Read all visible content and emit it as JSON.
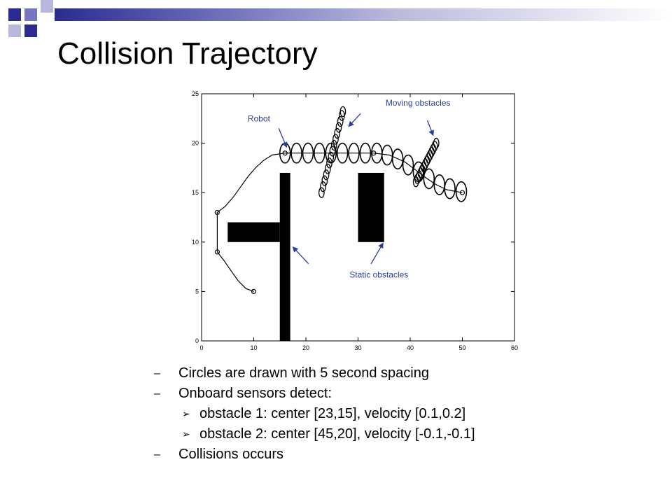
{
  "slide": {
    "title": "Collision Trajectory"
  },
  "theme": {
    "dark_blue": "#2b2b8f",
    "mid_blue": "#7777bf",
    "light_blue": "#b8b8dc",
    "annotation_color": "#2b3f9a"
  },
  "chart_data": {
    "type": "scatter",
    "xlim": [
      0,
      60
    ],
    "ylim": [
      0,
      25
    ],
    "x_ticks": [
      0,
      10,
      20,
      30,
      40,
      50,
      60
    ],
    "y_ticks": [
      0,
      5,
      10,
      15,
      20,
      25
    ],
    "grid": false,
    "static_obstacles": [
      {
        "x0": 15,
        "x1": 17,
        "y0": 0,
        "y1": 17
      },
      {
        "x0": 5,
        "x1": 15,
        "y0": 10,
        "y1": 12
      },
      {
        "x0": 30,
        "x1": 35,
        "y0": 10,
        "y1": 17
      }
    ],
    "robot_waypoints": [
      [
        10,
        5
      ],
      [
        3,
        9
      ],
      [
        3,
        13
      ],
      [
        16,
        19
      ],
      [
        33,
        19
      ],
      [
        50,
        15
      ]
    ],
    "robot_path": [
      [
        10,
        5
      ],
      [
        8.5,
        5.3
      ],
      [
        7,
        6.1
      ],
      [
        5.5,
        7.2
      ],
      [
        4.2,
        8.2
      ],
      [
        3,
        9
      ],
      [
        3,
        10
      ],
      [
        3,
        11
      ],
      [
        3,
        12
      ],
      [
        3,
        13
      ],
      [
        4.5,
        13.6
      ],
      [
        6,
        14.5
      ],
      [
        7.5,
        15.6
      ],
      [
        9,
        16.7
      ],
      [
        10.5,
        17.6
      ],
      [
        12,
        18.3
      ],
      [
        13.5,
        18.8
      ],
      [
        16,
        19
      ],
      [
        20,
        19
      ],
      [
        24,
        19
      ],
      [
        28,
        19
      ],
      [
        33,
        19
      ],
      [
        36,
        18.8
      ],
      [
        39,
        18.1
      ],
      [
        41,
        17.3
      ],
      [
        43,
        16.5
      ],
      [
        45,
        15.8
      ],
      [
        47,
        15.3
      ],
      [
        50,
        15
      ]
    ],
    "robot_circles": [
      [
        16,
        19
      ],
      [
        18.2,
        19
      ],
      [
        20.4,
        19
      ],
      [
        22.6,
        19
      ],
      [
        24.8,
        19
      ],
      [
        27,
        19
      ],
      [
        29.2,
        19
      ],
      [
        31.4,
        19
      ],
      [
        33.6,
        19
      ],
      [
        35.6,
        18.8
      ],
      [
        37.6,
        18.4
      ],
      [
        39.6,
        17.8
      ],
      [
        41.6,
        17.1
      ],
      [
        43.6,
        16.4
      ],
      [
        45.6,
        15.8
      ],
      [
        47.6,
        15.4
      ],
      [
        49.8,
        15.1
      ]
    ],
    "robot_circle_radius": 1.0,
    "moving_obstacle_1": [
      [
        23,
        15
      ],
      [
        23.3,
        15.6
      ],
      [
        23.6,
        16.2
      ],
      [
        23.9,
        16.8
      ],
      [
        24.2,
        17.4
      ],
      [
        24.5,
        18
      ],
      [
        24.8,
        18.6
      ],
      [
        25.1,
        19.2
      ],
      [
        25.4,
        19.8
      ],
      [
        25.7,
        20.4
      ],
      [
        26,
        21
      ],
      [
        26.3,
        21.6
      ],
      [
        26.6,
        22.2
      ],
      [
        26.9,
        22.8
      ],
      [
        27.1,
        23.2
      ]
    ],
    "moving_obstacle_2": [
      [
        45,
        20
      ],
      [
        44.7,
        19.7
      ],
      [
        44.4,
        19.4
      ],
      [
        44.1,
        19.1
      ],
      [
        43.8,
        18.8
      ],
      [
        43.5,
        18.5
      ],
      [
        43.2,
        18.2
      ],
      [
        42.9,
        17.9
      ],
      [
        42.6,
        17.6
      ],
      [
        42.3,
        17.3
      ],
      [
        42,
        17
      ],
      [
        41.7,
        16.7
      ],
      [
        41.4,
        16.4
      ],
      [
        41.1,
        16.1
      ]
    ],
    "moving_obstacle_radius": 0.5,
    "annotations": [
      {
        "text": "Robot",
        "x": 11,
        "y": 22.2,
        "arrow_from": [
          14.8,
          21.5
        ],
        "arrow_to": [
          16.3,
          19.6
        ]
      },
      {
        "text": "Moving obstacles",
        "x": 41.5,
        "y": 23.8,
        "arrow_from": [
          30.5,
          23
        ],
        "arrow_to": [
          28.2,
          21.7
        ]
      },
      {
        "text": "",
        "x": 0,
        "y": 0,
        "arrow_from": [
          43.3,
          22.3
        ],
        "arrow_to": [
          44.4,
          20.8
        ]
      },
      {
        "text": "Static obstacles",
        "x": 34,
        "y": 6.4,
        "arrow_from": [
          20.5,
          7.8
        ],
        "arrow_to": [
          17.5,
          9.5
        ]
      },
      {
        "text": "",
        "x": 0,
        "y": 0,
        "arrow_from": [
          32.5,
          7.8
        ],
        "arrow_to": [
          34.8,
          9.9
        ]
      }
    ]
  },
  "bullets": [
    {
      "level": 1,
      "text": "Circles are drawn with 5 second spacing"
    },
    {
      "level": 1,
      "text": "Onboard sensors detect:"
    },
    {
      "level": 2,
      "text": "obstacle 1: center [23,15], velocity [0.1,0.2]"
    },
    {
      "level": 2,
      "text": "obstacle 2: center [45,20], velocity [-0.1,-0.1]"
    },
    {
      "level": 1,
      "text": "Collisions occurs"
    }
  ],
  "markers": {
    "dash": "–",
    "arrow": "➢"
  }
}
